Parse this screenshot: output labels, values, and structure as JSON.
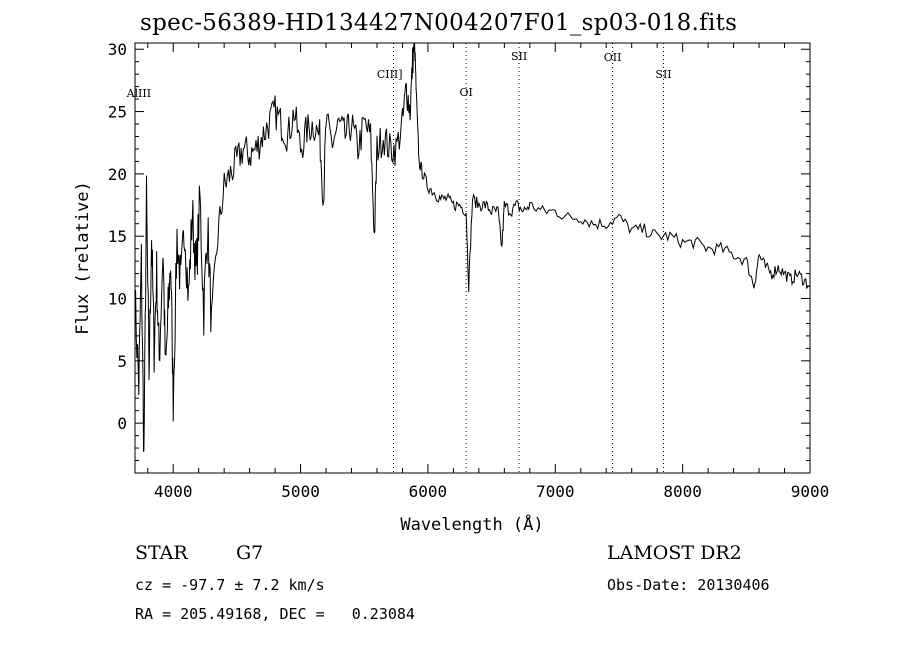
{
  "header": {
    "title": "spec-56389-HD134427N004207F01_sp03-018.fits"
  },
  "info": {
    "class_label": "STAR",
    "subclass": "G7",
    "survey": "LAMOST DR2",
    "cz": "cz = -97.7 ± 7.2 km/s",
    "obs_date": "Obs-Date: 20130406",
    "radec": "RA = 205.49168, DEC =   0.23084"
  },
  "chart_data": {
    "type": "line",
    "title": "spec-56389-HD134427N004207F01_sp03-018.fits",
    "xlabel": "Wavelength (Å)",
    "ylabel": "Flux (relative)",
    "xlim": [
      3700,
      9000
    ],
    "ylim": [
      -4,
      30.5
    ],
    "xticks": [
      4000,
      5000,
      6000,
      7000,
      8000,
      9000
    ],
    "yticks": [
      0,
      5,
      10,
      15,
      20,
      25,
      30
    ],
    "grid": false,
    "series": [
      {
        "x": [
          3700,
          3730,
          3750,
          3770,
          3790,
          3810,
          3830,
          3850,
          3870,
          3890,
          3920,
          3940,
          3960,
          3980,
          4000,
          4030,
          4060,
          4090,
          4120,
          4150,
          4180,
          4210,
          4240,
          4270,
          4300,
          4350,
          4400,
          4450,
          4500,
          4550,
          4600,
          4650,
          4700,
          4750,
          4800,
          4850,
          4900,
          4950,
          5000,
          5050,
          5100,
          5150,
          5180,
          5200,
          5250,
          5300,
          5350,
          5400,
          5450,
          5500,
          5550,
          5580,
          5600,
          5650,
          5700,
          5750,
          5800,
          5830,
          5860,
          5880,
          5895,
          5910,
          5930,
          5960,
          6000,
          6050,
          6100,
          6150,
          6200,
          6250,
          6300,
          6320,
          6350,
          6400,
          6450,
          6500,
          6550,
          6580,
          6600,
          6650,
          6700,
          6750,
          6800,
          6900,
          7000,
          7100,
          7200,
          7300,
          7400,
          7500,
          7600,
          7700,
          7800,
          7900,
          8000,
          8100,
          8200,
          8300,
          8400,
          8500,
          8560,
          8600,
          8650,
          8700,
          8750,
          8800,
          8850,
          8900,
          8950,
          9000
        ],
        "y": [
          10,
          3,
          13,
          -3,
          18,
          4,
          15,
          6,
          12,
          5,
          14,
          4,
          9,
          13,
          2,
          15,
          11,
          16,
          10,
          17,
          12,
          18,
          9,
          16,
          8,
          15,
          19,
          20,
          21,
          22,
          21.5,
          22,
          23,
          24,
          25,
          24,
          23,
          25,
          22,
          23.5,
          24,
          23,
          18,
          24,
          22.5,
          24,
          23,
          24,
          22,
          24,
          23,
          15,
          22,
          23,
          22,
          22,
          24,
          27,
          25,
          29,
          31,
          26,
          21,
          20,
          19,
          18.5,
          18,
          18,
          17.5,
          17.5,
          17,
          11,
          18,
          17.5,
          17.5,
          17,
          17,
          14,
          17.5,
          17,
          17.5,
          17,
          17.5,
          17,
          17,
          16.5,
          16.5,
          16,
          16,
          16.5,
          15.5,
          15.5,
          15,
          15,
          14.5,
          14.5,
          14,
          14,
          13.5,
          13,
          11,
          13.5,
          12.5,
          12,
          12.5,
          12,
          11.5,
          12,
          11.5,
          11
        ]
      }
    ],
    "annotations": [
      {
        "label": "AlIII",
        "x": 3730
      },
      {
        "label": "CIII]",
        "x": 5700
      },
      {
        "label": "OI",
        "x": 6300
      },
      {
        "label": "SII",
        "x": 6716
      },
      {
        "label": "OII",
        "x": 7450
      },
      {
        "label": "SII",
        "x": 7850
      }
    ],
    "marker_lines": [
      5730,
      6300,
      6716,
      7450,
      7850
    ]
  }
}
